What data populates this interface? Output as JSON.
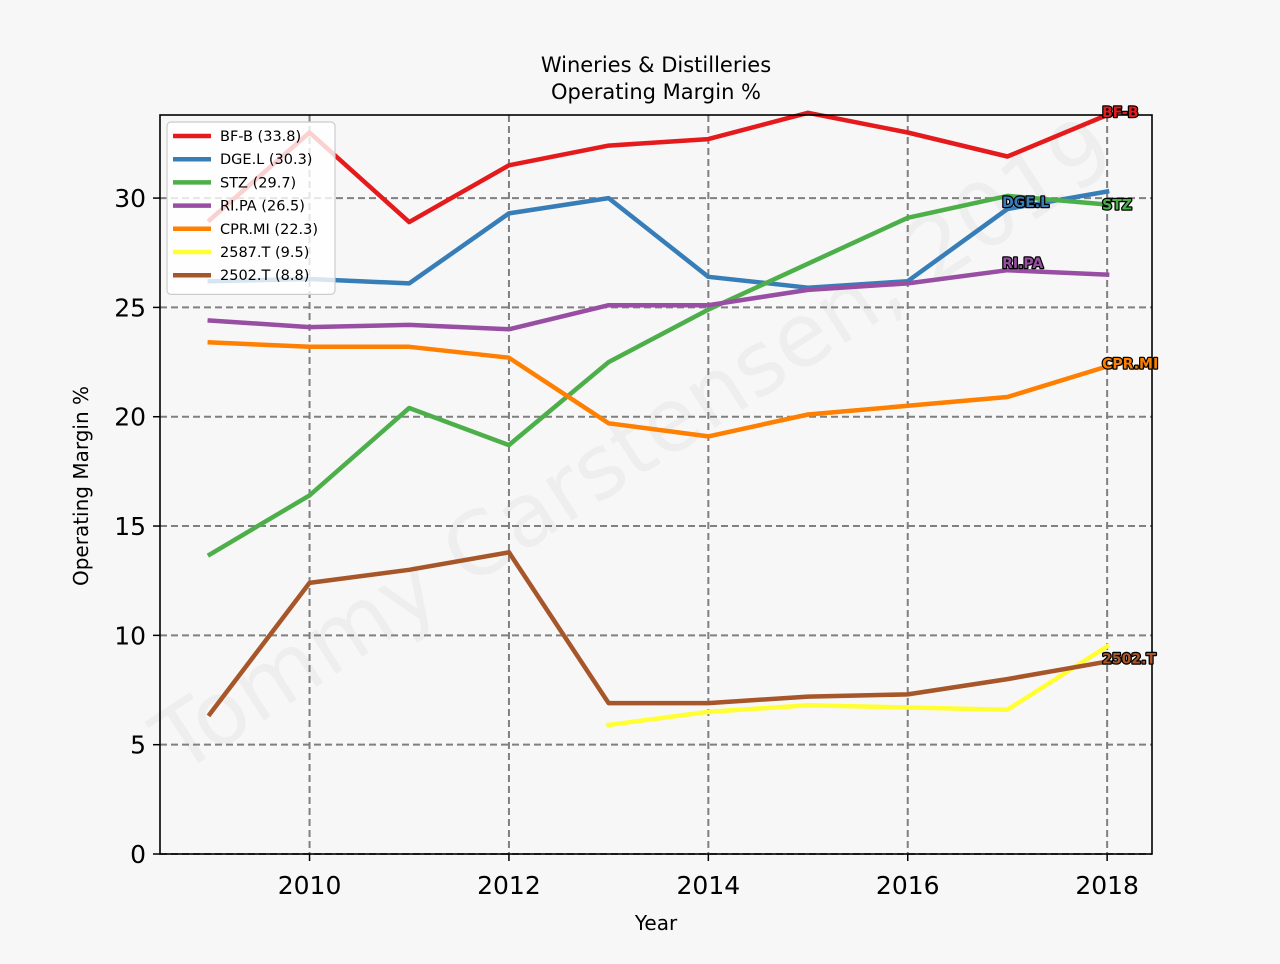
{
  "chart_data": {
    "type": "line",
    "title": "Wineries & Distilleries",
    "subtitle": "Operating Margin %",
    "xlabel": "Year",
    "ylabel": "Operating Margin %",
    "xlim": [
      2008.5,
      2018.45
    ],
    "ylim": [
      0,
      33.8
    ],
    "xticks": [
      2010,
      2012,
      2014,
      2016,
      2018
    ],
    "yticks": [
      0,
      5,
      10,
      15,
      20,
      25,
      30
    ],
    "grid": true,
    "legend_position": "top-left",
    "watermark": "Tommy Carstensen, 2019",
    "series": [
      {
        "name": "BF-B (33.8)",
        "label": "BF-B",
        "color": "#e41a1c",
        "label_outline": "#000000",
        "x": [
          2009,
          2010,
          2011,
          2012,
          2013,
          2014,
          2015,
          2016,
          2017,
          2018
        ],
        "y": [
          29.0,
          33.0,
          28.9,
          31.5,
          32.4,
          32.7,
          33.9,
          33.0,
          31.9,
          33.8
        ]
      },
      {
        "name": "DGE.L (30.3)",
        "label": "DGE.L",
        "color": "#377eb8",
        "label_outline": "#000000",
        "x": [
          2009,
          2010,
          2011,
          2012,
          2013,
          2014,
          2015,
          2016,
          2017,
          2018
        ],
        "y": [
          26.2,
          26.3,
          26.1,
          29.3,
          30.0,
          26.4,
          25.9,
          26.2,
          29.5,
          30.3
        ]
      },
      {
        "name": "STZ (29.7)",
        "label": "STZ",
        "color": "#4daf4a",
        "label_outline": "#000000",
        "x": [
          2009,
          2010,
          2011,
          2012,
          2013,
          2014,
          2015,
          2016,
          2017,
          2018
        ],
        "y": [
          13.7,
          16.4,
          20.4,
          18.7,
          22.5,
          24.9,
          27.0,
          29.1,
          30.1,
          29.7
        ]
      },
      {
        "name": "RI.PA (26.5)",
        "label": "RI.PA",
        "color": "#984ea3",
        "label_outline": "#000000",
        "x": [
          2009,
          2010,
          2011,
          2012,
          2013,
          2014,
          2015,
          2016,
          2017,
          2018
        ],
        "y": [
          24.4,
          24.1,
          24.2,
          24.0,
          25.1,
          25.1,
          25.8,
          26.1,
          26.7,
          26.5
        ]
      },
      {
        "name": "CPR.MI (22.3)",
        "label": "CPR.MI",
        "color": "#ff7f00",
        "label_outline": "#000000",
        "x": [
          2009,
          2010,
          2011,
          2012,
          2013,
          2014,
          2015,
          2016,
          2017,
          2018
        ],
        "y": [
          23.4,
          23.2,
          23.2,
          22.7,
          19.7,
          19.1,
          20.1,
          20.5,
          20.9,
          22.3
        ]
      },
      {
        "name": "2587.T (9.5)",
        "label": "",
        "color": "#ffff33",
        "label_outline": "#000000",
        "x": [
          2013,
          2014,
          2015,
          2016,
          2017,
          2018
        ],
        "y": [
          5.9,
          6.5,
          6.8,
          6.7,
          6.6,
          9.5
        ]
      },
      {
        "name": "2502.T (8.8)",
        "label": "2502.T",
        "color": "#a65628",
        "label_outline": "#000000",
        "x": [
          2009,
          2010,
          2011,
          2012,
          2013,
          2014,
          2015,
          2016,
          2017,
          2018
        ],
        "y": [
          6.4,
          12.4,
          13.0,
          13.8,
          6.9,
          6.9,
          7.2,
          7.3,
          8.0,
          8.8
        ]
      }
    ]
  }
}
